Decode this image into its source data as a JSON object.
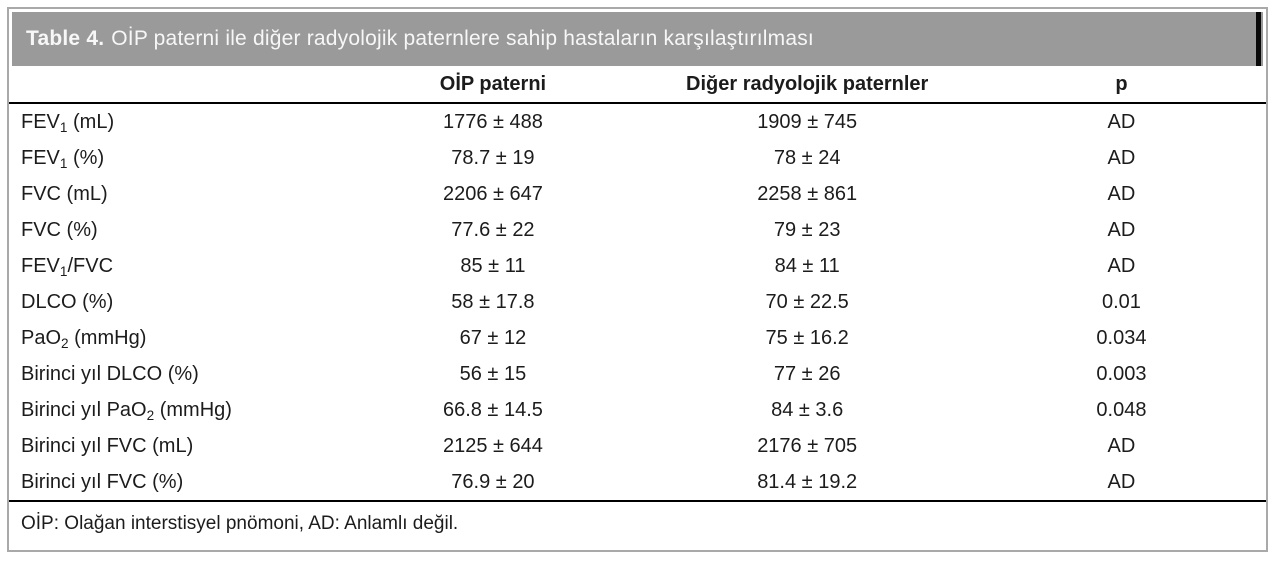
{
  "colors": {
    "header_bar": "#9a9a9a",
    "outer_border": "#a9a9a9",
    "title_text": "#f7f7f7",
    "body_text": "#1c1c1c",
    "rule": "#000000"
  },
  "table": {
    "title": {
      "label": "Table 4.",
      "text": "OİP paterni ile diğer radyolojik paternlere sahip hastaların karşılaştırılması"
    },
    "columns": {
      "label": "",
      "oip": "OİP paterni",
      "other": "Diğer radyolojik paternler",
      "p": "p"
    },
    "rows": [
      {
        "label": {
          "pre": "FEV",
          "sub": "1",
          "post": " (mL)"
        },
        "oip": "1776 ± 488",
        "other": "1909 ± 745",
        "p": "AD"
      },
      {
        "label": {
          "pre": "FEV",
          "sub": "1",
          "post": " (%)"
        },
        "oip": "78.7 ± 19",
        "other": "78 ± 24",
        "p": "AD"
      },
      {
        "label": {
          "pre": "FVC (mL)",
          "sub": "",
          "post": ""
        },
        "oip": "2206 ± 647",
        "other": "2258 ± 861",
        "p": "AD"
      },
      {
        "label": {
          "pre": "FVC (%)",
          "sub": "",
          "post": ""
        },
        "oip": "77.6 ± 22",
        "other": "79 ± 23",
        "p": "AD"
      },
      {
        "label": {
          "pre": "FEV",
          "sub": "1",
          "post": "/FVC"
        },
        "oip": "85 ± 11",
        "other": "84 ± 11",
        "p": "AD"
      },
      {
        "label": {
          "pre": "DLCO (%)",
          "sub": "",
          "post": ""
        },
        "oip": "58 ± 17.8",
        "other": "70 ± 22.5",
        "p": "0.01"
      },
      {
        "label": {
          "pre": "PaO",
          "sub": "2",
          "post": " (mmHg)"
        },
        "oip": "67 ± 12",
        "other": "75 ± 16.2",
        "p": "0.034"
      },
      {
        "label": {
          "pre": "Birinci yıl DLCO (%)",
          "sub": "",
          "post": ""
        },
        "oip": "56 ± 15",
        "other": "77 ± 26",
        "p": "0.003"
      },
      {
        "label": {
          "pre": "Birinci yıl PaO",
          "sub": "2",
          "post": " (mmHg)"
        },
        "oip": "66.8 ± 14.5",
        "other": "84 ± 3.6",
        "p": "0.048"
      },
      {
        "label": {
          "pre": "Birinci yıl FVC (mL)",
          "sub": "",
          "post": ""
        },
        "oip": "2125 ± 644",
        "other": "2176 ± 705",
        "p": "AD"
      },
      {
        "label": {
          "pre": "Birinci yıl FVC (%)",
          "sub": "",
          "post": ""
        },
        "oip": "76.9 ± 20",
        "other": "81.4 ± 19.2",
        "p": "AD"
      }
    ],
    "footnote": "OİP: Olağan interstisyel pnömoni, AD: Anlamlı değil."
  }
}
